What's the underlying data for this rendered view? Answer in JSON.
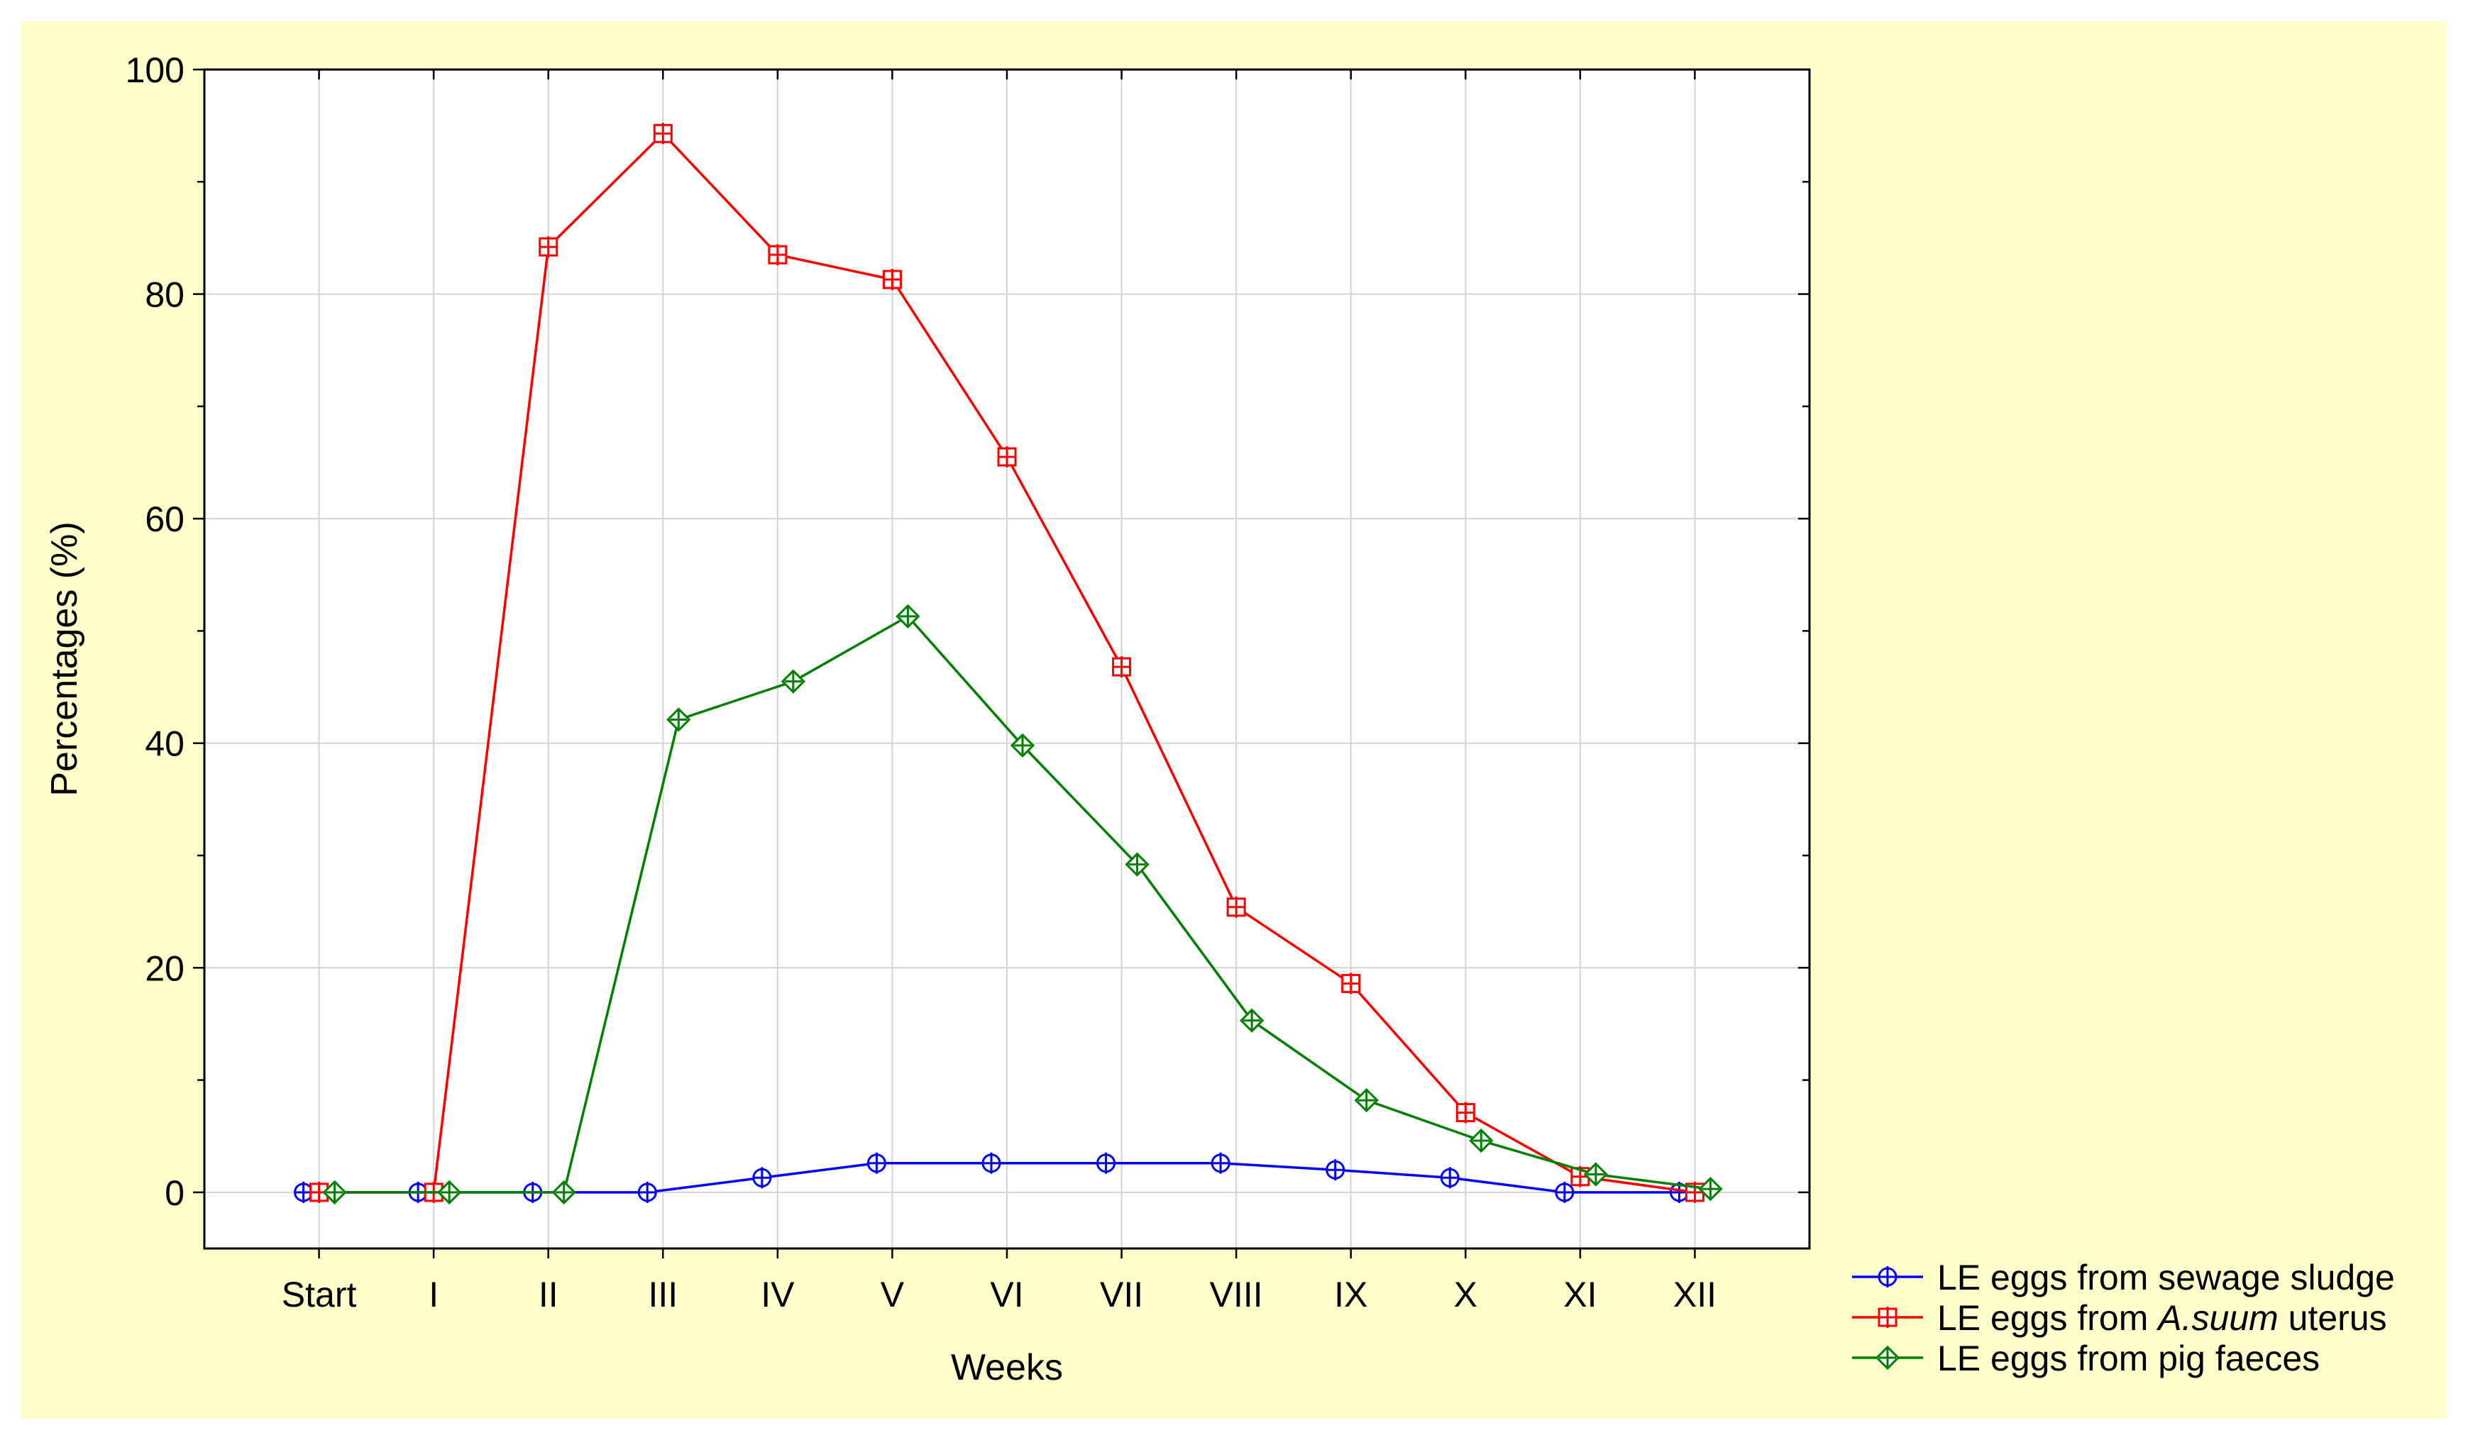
{
  "chart_data": {
    "type": "line",
    "categories": [
      "Start",
      "I",
      "II",
      "III",
      "IV",
      "V",
      "VI",
      "VII",
      "VIII",
      "IX",
      "X",
      "XI",
      "XII"
    ],
    "xlabel": "Weeks",
    "ylabel": "Percentages (%)",
    "ylim": [
      -5,
      100
    ],
    "yticks": [
      0,
      20,
      40,
      60,
      80,
      100
    ],
    "grid": true,
    "legend_position": "bottom-right, outside plot",
    "series": [
      {
        "name": "LE eggs from sewage sludge",
        "name_parts": [
          {
            "text": "LE eggs from sewage sludge",
            "italic": false
          }
        ],
        "color": "#0000ff",
        "marker": "circle-plus",
        "values": [
          0,
          0,
          0,
          0,
          1.3,
          2.6,
          2.6,
          2.6,
          2.6,
          2.0,
          1.3,
          0,
          0
        ]
      },
      {
        "name": "LE eggs from A.suum uterus",
        "name_parts": [
          {
            "text": "LE eggs from ",
            "italic": false
          },
          {
            "text": "A.suum",
            "italic": true
          },
          {
            "text": " uterus",
            "italic": false
          }
        ],
        "color": "#ff0000",
        "marker": "square-plus",
        "values": [
          0,
          0,
          84.2,
          94.3,
          83.5,
          81.3,
          65.5,
          46.8,
          25.4,
          18.6,
          7.1,
          1.4,
          0
        ]
      },
      {
        "name": "LE eggs from pig faeces",
        "name_parts": [
          {
            "text": "LE eggs from pig faeces",
            "italic": false
          }
        ],
        "color": "#008000",
        "marker": "diamond-plus",
        "values": [
          0,
          0,
          0,
          42.1,
          45.5,
          51.3,
          39.8,
          29.2,
          15.3,
          8.2,
          4.6,
          1.6,
          0.3
        ]
      }
    ]
  }
}
